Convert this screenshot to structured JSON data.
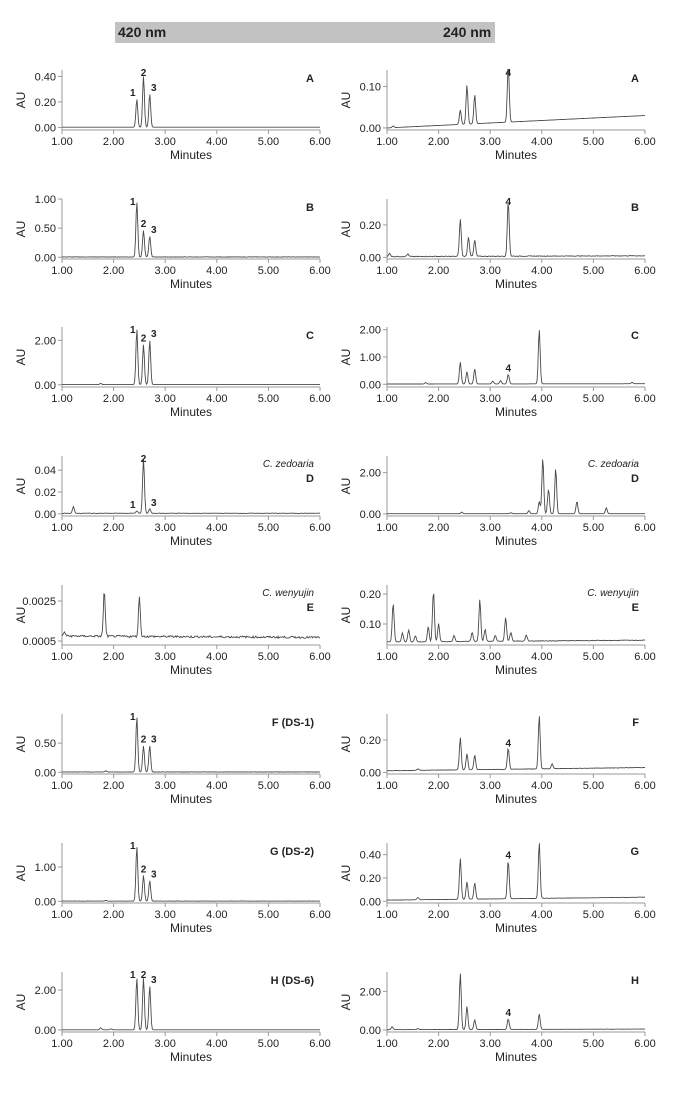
{
  "header": {
    "left_wavelength": "420 nm",
    "right_wavelength": "240 nm"
  },
  "colors": {
    "trace": "#4a4a4a",
    "axis": "#9a9a9a",
    "header_band": "#c2c2c2",
    "text": "#222222"
  },
  "chart_data": [
    {
      "type": "line",
      "panel": "A",
      "wavelength": "420 nm",
      "xlabel": "Minutes",
      "ylabel": "AU",
      "xlim": [
        1,
        6
      ],
      "ylim": [
        -0.02,
        0.45
      ],
      "xticks": [
        "1.00",
        "2.00",
        "3.00",
        "4.00",
        "5.00",
        "6.00"
      ],
      "yticks": [
        "0.00",
        "0.20",
        "0.40"
      ],
      "label": "A",
      "sublabel": "",
      "baseline": 0.002,
      "baseline_end": 0.002,
      "noise": 0,
      "peaks": [
        {
          "t": 2.45,
          "h": 0.22,
          "label": "1"
        },
        {
          "t": 2.58,
          "h": 0.4,
          "label": "2"
        },
        {
          "t": 2.7,
          "h": 0.26,
          "label": "3"
        }
      ]
    },
    {
      "type": "line",
      "panel": "A",
      "wavelength": "240 nm",
      "xlabel": "Minutes",
      "ylabel": "AU",
      "xlim": [
        1,
        6
      ],
      "ylim": [
        -0.005,
        0.14
      ],
      "xticks": [
        "1.00",
        "2.00",
        "3.00",
        "4.00",
        "5.00",
        "6.00"
      ],
      "yticks": [
        "0.00",
        "0.10"
      ],
      "label": "A",
      "sublabel": "",
      "baseline": 0.0,
      "baseline_end": 0.03,
      "noise": 0,
      "peaks": [
        {
          "t": 1.12,
          "h": 0.004
        },
        {
          "t": 2.42,
          "h": 0.035
        },
        {
          "t": 2.55,
          "h": 0.095
        },
        {
          "t": 2.7,
          "h": 0.07
        },
        {
          "t": 3.35,
          "h": 0.14,
          "label": "4"
        }
      ]
    },
    {
      "type": "line",
      "panel": "B",
      "wavelength": "420 nm",
      "xlabel": "Minutes",
      "ylabel": "AU",
      "xlim": [
        1,
        6
      ],
      "ylim": [
        -0.03,
        1.0
      ],
      "xticks": [
        "1.00",
        "2.00",
        "3.00",
        "4.00",
        "5.00",
        "6.00"
      ],
      "yticks": [
        "0.00",
        "0.50",
        "1.00"
      ],
      "label": "B",
      "sublabel": "",
      "baseline": 0.005,
      "baseline_end": 0.005,
      "noise": 0.004,
      "peaks": [
        {
          "t": 2.45,
          "h": 0.95,
          "label": "1"
        },
        {
          "t": 2.58,
          "h": 0.46,
          "label": "2"
        },
        {
          "t": 2.7,
          "h": 0.36,
          "label": "3"
        }
      ]
    },
    {
      "type": "line",
      "panel": "B",
      "wavelength": "240 nm",
      "xlabel": "Minutes",
      "ylabel": "AU",
      "xlim": [
        1,
        6
      ],
      "ylim": [
        -0.01,
        0.36
      ],
      "xticks": [
        "1.00",
        "2.00",
        "3.00",
        "4.00",
        "5.00",
        "6.00"
      ],
      "yticks": [
        "0.00",
        "0.20"
      ],
      "label": "B",
      "sublabel": "",
      "baseline": 0.005,
      "baseline_end": 0.01,
      "noise": 0.002,
      "peaks": [
        {
          "t": 1.05,
          "h": 0.02
        },
        {
          "t": 1.4,
          "h": 0.015
        },
        {
          "t": 2.42,
          "h": 0.23
        },
        {
          "t": 2.58,
          "h": 0.12
        },
        {
          "t": 2.7,
          "h": 0.1
        },
        {
          "t": 3.35,
          "h": 0.34,
          "label": "4"
        }
      ]
    },
    {
      "type": "line",
      "panel": "C",
      "wavelength": "420 nm",
      "xlabel": "Minutes",
      "ylabel": "AU",
      "xlim": [
        1,
        6
      ],
      "ylim": [
        -0.1,
        2.6
      ],
      "xticks": [
        "1.00",
        "2.00",
        "3.00",
        "4.00",
        "5.00",
        "6.00"
      ],
      "yticks": [
        "0.00",
        "2.00"
      ],
      "label": "C",
      "sublabel": "",
      "baseline": 0.01,
      "baseline_end": 0.01,
      "noise": 0,
      "peaks": [
        {
          "t": 1.75,
          "h": 0.05
        },
        {
          "t": 2.45,
          "h": 2.5,
          "label": "1"
        },
        {
          "t": 2.58,
          "h": 1.8,
          "label": "2"
        },
        {
          "t": 2.7,
          "h": 2.0,
          "label": "3"
        }
      ]
    },
    {
      "type": "line",
      "panel": "C",
      "wavelength": "240 nm",
      "xlabel": "Minutes",
      "ylabel": "AU",
      "xlim": [
        1,
        6
      ],
      "ylim": [
        -0.1,
        2.1
      ],
      "xticks": [
        "1.00",
        "2.00",
        "3.00",
        "4.00",
        "5.00",
        "6.00"
      ],
      "yticks": [
        "0.00",
        "1.00",
        "2.00"
      ],
      "label": "C",
      "sublabel": "",
      "baseline": 0.01,
      "baseline_end": 0.02,
      "noise": 0,
      "peaks": [
        {
          "t": 1.75,
          "h": 0.05
        },
        {
          "t": 2.42,
          "h": 0.8
        },
        {
          "t": 2.55,
          "h": 0.45
        },
        {
          "t": 2.7,
          "h": 0.55
        },
        {
          "t": 3.05,
          "h": 0.1
        },
        {
          "t": 3.2,
          "h": 0.12
        },
        {
          "t": 3.35,
          "h": 0.35,
          "label": "4"
        },
        {
          "t": 3.95,
          "h": 2.0
        },
        {
          "t": 5.75,
          "h": 0.05
        }
      ]
    },
    {
      "type": "line",
      "panel": "D",
      "wavelength": "420 nm",
      "xlabel": "Minutes",
      "ylabel": "AU",
      "xlim": [
        1,
        6
      ],
      "ylim": [
        -0.002,
        0.053
      ],
      "xticks": [
        "1.00",
        "2.00",
        "3.00",
        "4.00",
        "5.00",
        "6.00"
      ],
      "yticks": [
        "0.00",
        "0.02",
        "0.04"
      ],
      "label": "D",
      "sublabel": "C. zedoaria",
      "baseline": 0.0005,
      "baseline_end": 0.0005,
      "noise": 0.0002,
      "peaks": [
        {
          "t": 1.22,
          "h": 0.006
        },
        {
          "t": 2.45,
          "h": 0.002,
          "label": "1"
        },
        {
          "t": 2.58,
          "h": 0.05,
          "label": "2"
        },
        {
          "t": 2.7,
          "h": 0.004,
          "label": "3"
        }
      ]
    },
    {
      "type": "line",
      "panel": "D",
      "wavelength": "240 nm",
      "xlabel": "Minutes",
      "ylabel": "AU",
      "xlim": [
        1,
        6
      ],
      "ylim": [
        -0.1,
        2.8
      ],
      "xticks": [
        "1.00",
        "2.00",
        "3.00",
        "4.00",
        "5.00",
        "6.00"
      ],
      "yticks": [
        "0.00",
        "2.00"
      ],
      "label": "D",
      "sublabel": "C. zedoaria",
      "baseline": 0.01,
      "baseline_end": 0.01,
      "noise": 0,
      "peaks": [
        {
          "t": 2.45,
          "h": 0.08
        },
        {
          "t": 3.4,
          "h": 0.05
        },
        {
          "t": 3.75,
          "h": 0.15
        },
        {
          "t": 3.95,
          "h": 0.6
        },
        {
          "t": 4.02,
          "h": 2.7
        },
        {
          "t": 4.13,
          "h": 1.2
        },
        {
          "t": 4.27,
          "h": 2.2
        },
        {
          "t": 4.68,
          "h": 0.6
        },
        {
          "t": 5.25,
          "h": 0.28
        }
      ]
    },
    {
      "type": "line",
      "panel": "E",
      "wavelength": "420 nm",
      "xlabel": "Minutes",
      "ylabel": "AU",
      "xlim": [
        1,
        6
      ],
      "ylim": [
        0.0003,
        0.0033
      ],
      "xticks": [
        "1.00",
        "2.00",
        "3.00",
        "4.00",
        "5.00",
        "6.00"
      ],
      "yticks": [
        "0.0005",
        "0.0025"
      ],
      "label": "E",
      "sublabel": "C. wenyujin",
      "baseline": 0.00075,
      "baseline_end": 0.00068,
      "noise": 5e-05,
      "peaks": [
        {
          "t": 1.05,
          "h": 0.0002
        },
        {
          "t": 1.82,
          "h": 0.0023
        },
        {
          "t": 2.5,
          "h": 0.002
        }
      ]
    },
    {
      "type": "line",
      "panel": "E",
      "wavelength": "240 nm",
      "xlabel": "Minutes",
      "ylabel": "AU",
      "xlim": [
        1,
        6
      ],
      "ylim": [
        0.03,
        0.23
      ],
      "xticks": [
        "1.00",
        "2.00",
        "3.00",
        "4.00",
        "5.00",
        "6.00"
      ],
      "yticks": [
        "0.10",
        "0.20"
      ],
      "label": "E",
      "sublabel": "C. wenyujin",
      "baseline": 0.04,
      "baseline_end": 0.046,
      "noise": 0.001,
      "peaks": [
        {
          "t": 1.12,
          "h": 0.13
        },
        {
          "t": 1.3,
          "h": 0.03
        },
        {
          "t": 1.42,
          "h": 0.04
        },
        {
          "t": 1.55,
          "h": 0.02
        },
        {
          "t": 1.8,
          "h": 0.05
        },
        {
          "t": 1.9,
          "h": 0.17
        },
        {
          "t": 2.0,
          "h": 0.06
        },
        {
          "t": 2.3,
          "h": 0.02
        },
        {
          "t": 2.65,
          "h": 0.03
        },
        {
          "t": 2.8,
          "h": 0.14
        },
        {
          "t": 2.9,
          "h": 0.04
        },
        {
          "t": 3.1,
          "h": 0.02
        },
        {
          "t": 3.3,
          "h": 0.08
        },
        {
          "t": 3.4,
          "h": 0.03
        },
        {
          "t": 3.7,
          "h": 0.02
        }
      ]
    },
    {
      "type": "line",
      "panel": "F (DS-1)",
      "wavelength": "420 nm",
      "xlabel": "Minutes",
      "ylabel": "AU",
      "xlim": [
        1,
        6
      ],
      "ylim": [
        -0.03,
        1.0
      ],
      "xticks": [
        "1.00",
        "2.00",
        "3.00",
        "4.00",
        "5.00",
        "6.00"
      ],
      "yticks": [
        "0.00",
        "0.50"
      ],
      "label": "F (DS-1)",
      "sublabel": "",
      "baseline": 0.005,
      "baseline_end": 0.005,
      "noise": 0.003,
      "peaks": [
        {
          "t": 1.85,
          "h": 0.02
        },
        {
          "t": 2.45,
          "h": 0.95,
          "label": "1"
        },
        {
          "t": 2.58,
          "h": 0.45,
          "label": "2"
        },
        {
          "t": 2.7,
          "h": 0.45,
          "label": "3"
        }
      ]
    },
    {
      "type": "line",
      "panel": "F (DS-1)",
      "wavelength": "240 nm",
      "xlabel": "Minutes",
      "ylabel": "AU",
      "xlim": [
        1,
        6
      ],
      "ylim": [
        -0.01,
        0.36
      ],
      "xticks": [
        "1.00",
        "2.00",
        "3.00",
        "4.00",
        "5.00",
        "6.00"
      ],
      "yticks": [
        "0.00",
        "0.20"
      ],
      "label": "F",
      "sublabel": "",
      "baseline": 0.01,
      "baseline_end": 0.03,
      "noise": 0.001,
      "peaks": [
        {
          "t": 1.6,
          "h": 0.01
        },
        {
          "t": 2.42,
          "h": 0.2
        },
        {
          "t": 2.55,
          "h": 0.1
        },
        {
          "t": 2.7,
          "h": 0.09
        },
        {
          "t": 3.35,
          "h": 0.13,
          "label": "4"
        },
        {
          "t": 3.95,
          "h": 0.33
        },
        {
          "t": 4.2,
          "h": 0.03
        }
      ]
    },
    {
      "type": "line",
      "panel": "G (DS-2)",
      "wavelength": "420 nm",
      "xlabel": "Minutes",
      "ylabel": "AU",
      "xlim": [
        1,
        6
      ],
      "ylim": [
        -0.05,
        1.7
      ],
      "xticks": [
        "1.00",
        "2.00",
        "3.00",
        "4.00",
        "5.00",
        "6.00"
      ],
      "yticks": [
        "0.00",
        "1.00"
      ],
      "label": "G (DS-2)",
      "sublabel": "",
      "baseline": 0.005,
      "baseline_end": 0.005,
      "noise": 0.003,
      "peaks": [
        {
          "t": 1.85,
          "h": 0.02
        },
        {
          "t": 2.45,
          "h": 1.6,
          "label": "1"
        },
        {
          "t": 2.58,
          "h": 0.75,
          "label": "2"
        },
        {
          "t": 2.7,
          "h": 0.6,
          "label": "3"
        }
      ]
    },
    {
      "type": "line",
      "panel": "G (DS-2)",
      "wavelength": "240 nm",
      "xlabel": "Minutes",
      "ylabel": "AU",
      "xlim": [
        1,
        6
      ],
      "ylim": [
        -0.015,
        0.5
      ],
      "xticks": [
        "1.00",
        "2.00",
        "3.00",
        "4.00",
        "5.00",
        "6.00"
      ],
      "yticks": [
        "0.00",
        "0.20",
        "0.40"
      ],
      "label": "G",
      "sublabel": "",
      "baseline": 0.01,
      "baseline_end": 0.035,
      "noise": 0.001,
      "peaks": [
        {
          "t": 1.6,
          "h": 0.02
        },
        {
          "t": 2.42,
          "h": 0.35
        },
        {
          "t": 2.55,
          "h": 0.15
        },
        {
          "t": 2.7,
          "h": 0.14
        },
        {
          "t": 3.35,
          "h": 0.33,
          "label": "4"
        },
        {
          "t": 3.95,
          "h": 0.48
        }
      ]
    },
    {
      "type": "line",
      "panel": "H (DS-6)",
      "wavelength": "420 nm",
      "xlabel": "Minutes",
      "ylabel": "AU",
      "xlim": [
        1,
        6
      ],
      "ylim": [
        -0.1,
        2.9
      ],
      "xticks": [
        "1.00",
        "2.00",
        "3.00",
        "4.00",
        "5.00",
        "6.00"
      ],
      "yticks": [
        "0.00",
        "2.00"
      ],
      "label": "H (DS-6)",
      "sublabel": "",
      "baseline": 0.01,
      "baseline_end": 0.01,
      "noise": 0,
      "peaks": [
        {
          "t": 1.75,
          "h": 0.1
        },
        {
          "t": 1.95,
          "h": 0.05
        },
        {
          "t": 2.45,
          "h": 2.6,
          "label": "1"
        },
        {
          "t": 2.58,
          "h": 2.6,
          "label": "2"
        },
        {
          "t": 2.7,
          "h": 2.2,
          "label": "3"
        }
      ]
    },
    {
      "type": "line",
      "panel": "H (DS-6)",
      "wavelength": "240 nm",
      "xlabel": "Minutes",
      "ylabel": "AU",
      "xlim": [
        1,
        6
      ],
      "ylim": [
        -0.1,
        3.0
      ],
      "xticks": [
        "1.00",
        "2.00",
        "3.00",
        "4.00",
        "5.00",
        "6.00"
      ],
      "yticks": [
        "0.00",
        "2.00"
      ],
      "label": "H",
      "sublabel": "",
      "baseline": 0.02,
      "baseline_end": 0.05,
      "noise": 0.005,
      "peaks": [
        {
          "t": 1.1,
          "h": 0.15
        },
        {
          "t": 1.6,
          "h": 0.05
        },
        {
          "t": 2.42,
          "h": 2.9
        },
        {
          "t": 2.55,
          "h": 1.2
        },
        {
          "t": 2.7,
          "h": 0.5
        },
        {
          "t": 3.35,
          "h": 0.55,
          "label": "4"
        },
        {
          "t": 3.95,
          "h": 0.8
        }
      ]
    }
  ]
}
